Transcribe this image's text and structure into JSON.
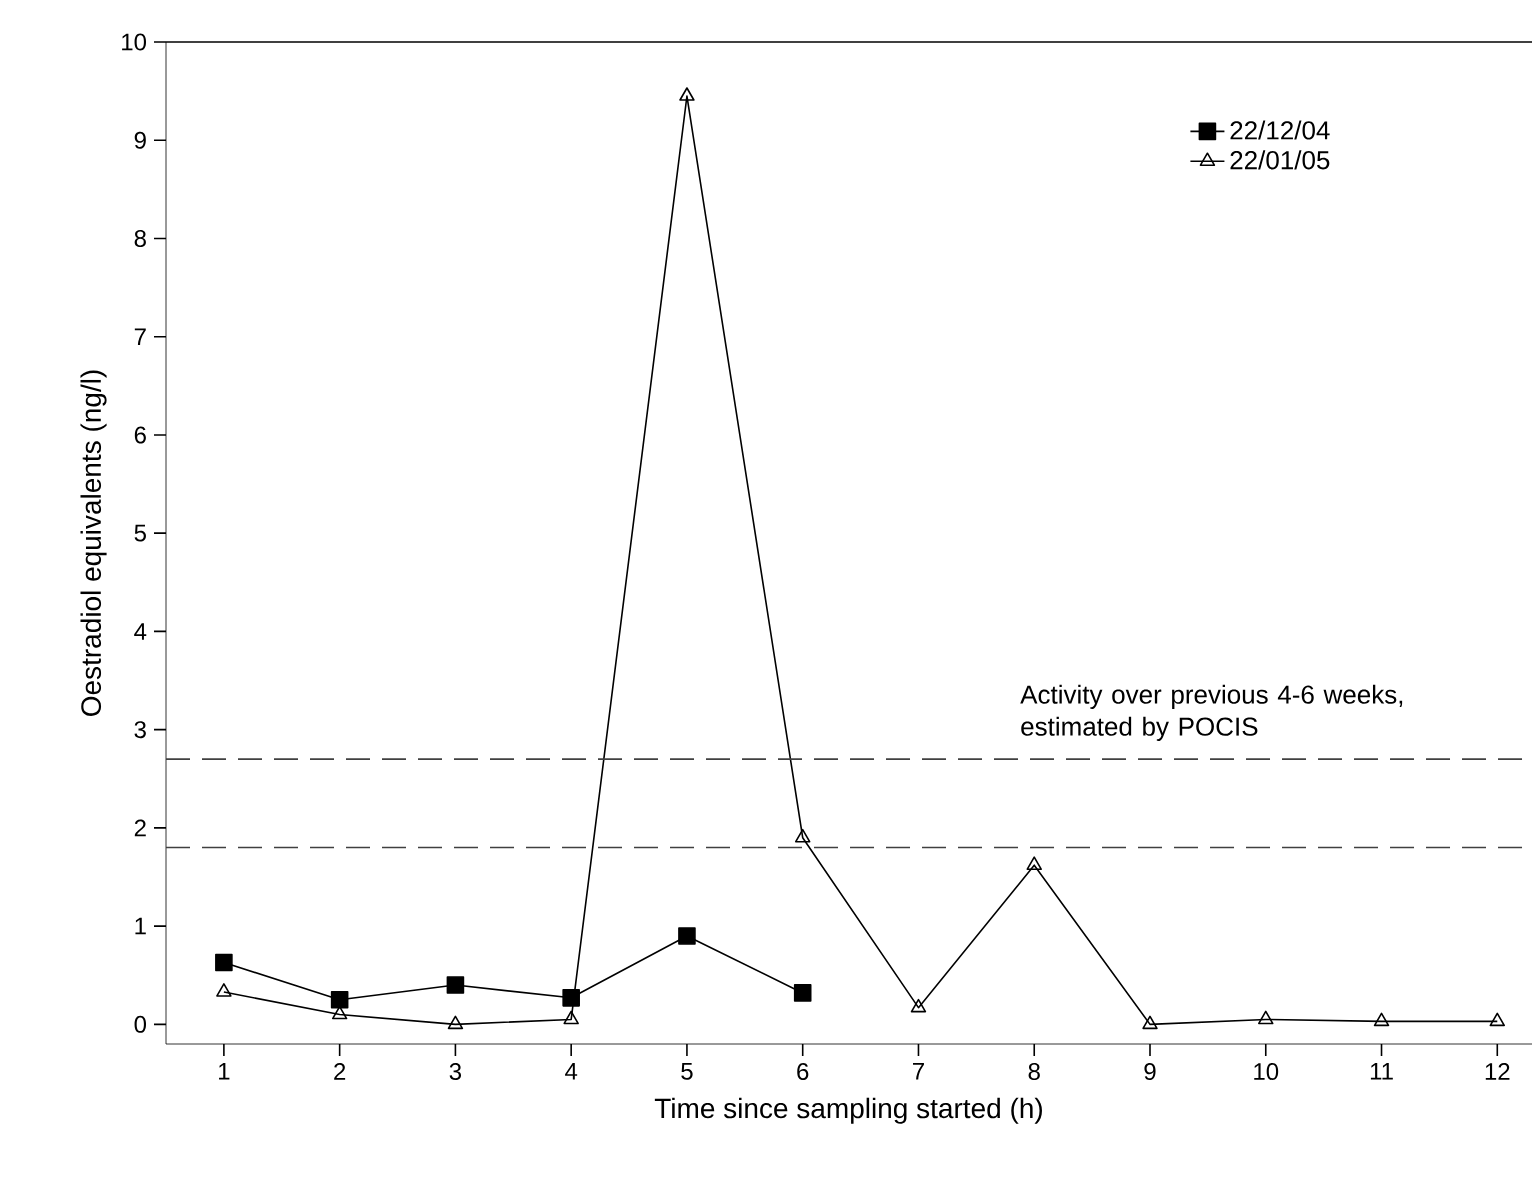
{
  "chart_data": {
    "type": "line",
    "xlabel": "Time since sampling started (h)",
    "ylabel": "Oestradiol equivalents (ng/l)",
    "x": [
      1,
      2,
      3,
      4,
      5,
      6,
      7,
      8,
      9,
      10,
      11,
      12
    ],
    "series": [
      {
        "name": "22/12/04",
        "color": "#000000",
        "marker": "square",
        "values": [
          0.63,
          0.25,
          0.4,
          0.27,
          0.9,
          0.32,
          null,
          null,
          null,
          null,
          null,
          null
        ]
      },
      {
        "name": "22/01/05",
        "color": "#000000",
        "marker": "triangle",
        "values": [
          0.33,
          0.1,
          0.0,
          0.05,
          9.45,
          1.9,
          0.17,
          1.62,
          0.0,
          0.05,
          0.03,
          0.03
        ]
      }
    ],
    "xlim": [
      0.5,
      12.3
    ],
    "xticks": [
      1,
      2,
      3,
      4,
      5,
      6,
      7,
      8,
      9,
      10,
      11,
      12
    ],
    "ylim": [
      -0.2,
      10
    ],
    "yticks": [
      0,
      1,
      2,
      3,
      4,
      5,
      6,
      7,
      8,
      9,
      10
    ],
    "ref_lines": [
      {
        "axis": "y",
        "value": 2.7,
        "line_style": "dashed"
      },
      {
        "axis": "y",
        "value": 1.8,
        "line_style": "dashed"
      }
    ],
    "annotations": [
      "Activity over previous 4-6 weeks, estimated by POCIS"
    ],
    "legend": "top right",
    "grid": false,
    "line_style": "solid"
  }
}
